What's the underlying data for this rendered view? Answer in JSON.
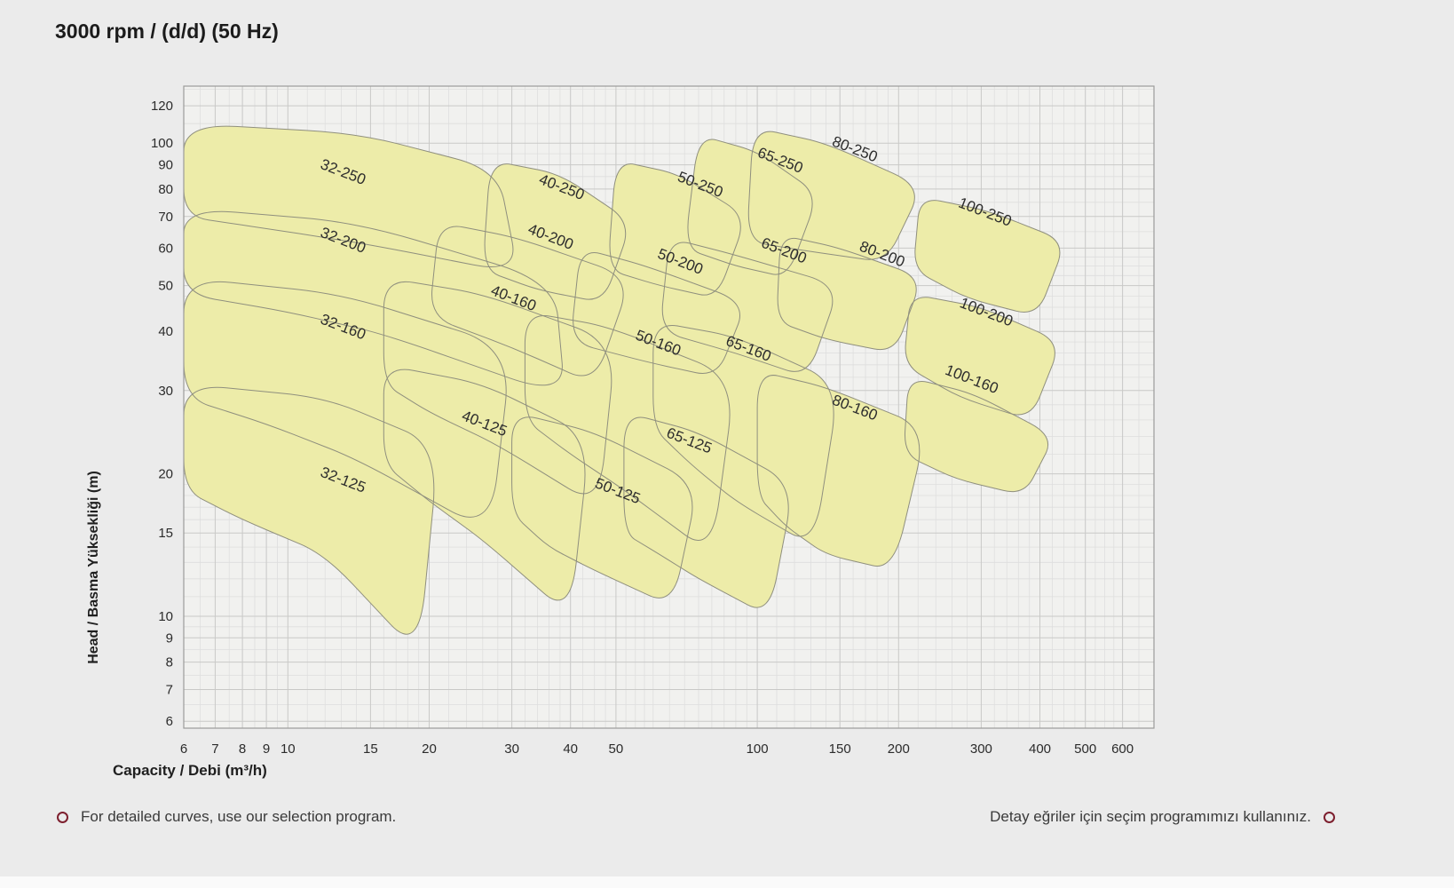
{
  "page": {
    "title": "3000 rpm / (d/d) (50 Hz)",
    "background": "#ebebeb"
  },
  "footer": {
    "left_note": "For detailed curves, use our selection program.",
    "right_note": "Detay eğriler için seçim programımızı kullanınız.",
    "marker_icon": "circle-outline-icon",
    "marker_color": "#7d1f2e"
  },
  "chart_data": {
    "type": "area",
    "subtype": "pump-selection-mosaic",
    "title": "3000 rpm / (d/d) (50 Hz)",
    "xlabel": "Capacity / Debi (m³/h)",
    "ylabel": "Head / Basma Yüksekliği (m)",
    "x_scale": "log",
    "y_scale": "log",
    "xlim": [
      6,
      700
    ],
    "ylim": [
      5.8,
      132
    ],
    "x_ticks": [
      6,
      7,
      8,
      9,
      10,
      15,
      20,
      30,
      40,
      50,
      100,
      150,
      200,
      300,
      400,
      500,
      600
    ],
    "y_ticks": [
      6,
      7,
      8,
      9,
      10,
      15,
      20,
      30,
      40,
      50,
      60,
      70,
      80,
      90,
      100,
      120
    ],
    "grid": true,
    "legend": "none",
    "label_angle_deg": 21,
    "colors": {
      "plot_bg": "#f1f1ef",
      "grid_minor": "#dedede",
      "grid_major": "#c9c9c7",
      "plot_border": "#9b9b99",
      "region_fill": "#edeca9",
      "region_stroke": "#8f8f7e",
      "label_color": "#2d2d2d",
      "tick_color": "#2b2b2b"
    },
    "regions": [
      {
        "label": "32-125",
        "label_at": [
          13,
          19
        ],
        "points": [
          [
            6,
            18.5
          ],
          [
            6,
            31
          ],
          [
            12,
            29
          ],
          [
            21,
            23
          ],
          [
            19,
            8.3
          ],
          [
            12,
            13.5
          ],
          [
            8,
            16
          ]
        ]
      },
      {
        "label": "32-160",
        "label_at": [
          13,
          40
        ],
        "points": [
          [
            6,
            29
          ],
          [
            6,
            52
          ],
          [
            13,
            48
          ],
          [
            30,
            37
          ],
          [
            27,
            15
          ],
          [
            14,
            21.5
          ],
          [
            9,
            25.5
          ]
        ]
      },
      {
        "label": "32-200",
        "label_at": [
          13,
          61
        ],
        "points": [
          [
            6,
            48
          ],
          [
            6,
            73
          ],
          [
            14,
            68
          ],
          [
            37,
            51
          ],
          [
            39,
            29
          ],
          [
            16,
            39.5
          ],
          [
            10,
            44
          ]
        ]
      },
      {
        "label": "32-250",
        "label_at": [
          13,
          85
        ],
        "points": [
          [
            6,
            70
          ],
          [
            6,
            110
          ],
          [
            14,
            105
          ],
          [
            28,
            88
          ],
          [
            31,
            53
          ],
          [
            15,
            61
          ],
          [
            9,
            66
          ]
        ]
      },
      {
        "label": "40-125",
        "label_at": [
          26,
          25
        ],
        "points": [
          [
            16,
            21
          ],
          [
            16,
            34
          ],
          [
            26,
            31
          ],
          [
            44,
            24
          ],
          [
            40,
            10
          ],
          [
            26,
            14.5
          ],
          [
            20,
            17.5
          ]
        ]
      },
      {
        "label": "40-160",
        "label_at": [
          30,
          46
        ],
        "points": [
          [
            16,
            31
          ],
          [
            16,
            52
          ],
          [
            26,
            48
          ],
          [
            50,
            38
          ],
          [
            46,
            17
          ],
          [
            28,
            23
          ],
          [
            20,
            27
          ]
        ]
      },
      {
        "label": "40-200",
        "label_at": [
          36,
          62
        ],
        "points": [
          [
            20,
            43
          ],
          [
            21,
            68
          ],
          [
            31,
            63
          ],
          [
            54,
            52
          ],
          [
            45,
            31
          ],
          [
            30,
            37
          ]
        ]
      },
      {
        "label": "40-250",
        "label_at": [
          38,
          79
        ],
        "points": [
          [
            26,
            54
          ],
          [
            27,
            92
          ],
          [
            38,
            86
          ],
          [
            54,
            68
          ],
          [
            47,
            46
          ],
          [
            34,
            49
          ]
        ]
      },
      {
        "label": "50-125",
        "label_at": [
          50,
          18
        ],
        "points": [
          [
            30,
            16.5
          ],
          [
            30,
            27
          ],
          [
            45,
            24.5
          ],
          [
            75,
            19
          ],
          [
            66,
            10.5
          ],
          [
            45,
            12.5
          ],
          [
            36,
            14
          ]
        ]
      },
      {
        "label": "50-160",
        "label_at": [
          61,
          37
        ],
        "points": [
          [
            32,
            26
          ],
          [
            32,
            44
          ],
          [
            48,
            41
          ],
          [
            90,
            32
          ],
          [
            80,
            13.5
          ],
          [
            52,
            18.5
          ],
          [
            40,
            22
          ]
        ]
      },
      {
        "label": "50-200",
        "label_at": [
          68,
          55
        ],
        "points": [
          [
            40,
            38
          ],
          [
            42,
            60
          ],
          [
            58,
            55
          ],
          [
            95,
            46
          ],
          [
            82,
            32
          ],
          [
            58,
            34.5
          ]
        ]
      },
      {
        "label": "50-250",
        "label_at": [
          75,
          80
        ],
        "points": [
          [
            48,
            54
          ],
          [
            50,
            92
          ],
          [
            68,
            86
          ],
          [
            95,
            70
          ],
          [
            82,
            47
          ],
          [
            62,
            50
          ]
        ]
      },
      {
        "label": "65-125",
        "label_at": [
          71,
          23
        ],
        "points": [
          [
            52,
            15
          ],
          [
            52,
            27
          ],
          [
            75,
            24.5
          ],
          [
            120,
            19
          ],
          [
            106,
            10
          ],
          [
            75,
            12
          ],
          [
            62,
            13.5
          ]
        ]
      },
      {
        "label": "65-160",
        "label_at": [
          95,
          36
        ],
        "points": [
          [
            60,
            25
          ],
          [
            60,
            42
          ],
          [
            90,
            39
          ],
          [
            150,
            31
          ],
          [
            132,
            14
          ],
          [
            90,
            17.5
          ],
          [
            72,
            21
          ]
        ]
      },
      {
        "label": "65-200",
        "label_at": [
          113,
          58
        ],
        "points": [
          [
            62,
            40
          ],
          [
            65,
            63
          ],
          [
            90,
            58
          ],
          [
            150,
            50
          ],
          [
            128,
            32
          ],
          [
            90,
            36
          ]
        ]
      },
      {
        "label": "65-250",
        "label_at": [
          111,
          90
        ],
        "points": [
          [
            70,
            60
          ],
          [
            75,
            104
          ],
          [
            100,
            96
          ],
          [
            135,
            78
          ],
          [
            116,
            52
          ],
          [
            90,
            55
          ]
        ]
      },
      {
        "label": "80-160",
        "label_at": [
          160,
          27
        ],
        "points": [
          [
            100,
            18
          ],
          [
            100,
            33
          ],
          [
            140,
            30.5
          ],
          [
            230,
            25
          ],
          [
            195,
            12.5
          ],
          [
            140,
            13.5
          ],
          [
            115,
            15.5
          ]
        ]
      },
      {
        "label": "80-200",
        "label_at": [
          183,
          57
        ],
        "points": [
          [
            110,
            42
          ],
          [
            112,
            64
          ],
          [
            150,
            60
          ],
          [
            225,
            52
          ],
          [
            196,
            36
          ],
          [
            140,
            38.5
          ]
        ]
      },
      {
        "label": "80-250",
        "label_at": [
          160,
          95
        ],
        "points": [
          [
            95,
            62
          ],
          [
            98,
            108
          ],
          [
            140,
            100
          ],
          [
            225,
            81
          ],
          [
            188,
            56
          ],
          [
            130,
            59
          ]
        ]
      },
      {
        "label": "100-160",
        "label_at": [
          284,
          31
        ],
        "points": [
          [
            205,
            22
          ],
          [
            210,
            32
          ],
          [
            290,
            29.5
          ],
          [
            430,
            24
          ],
          [
            370,
            18
          ],
          [
            265,
            19.5
          ]
        ]
      },
      {
        "label": "100-200",
        "label_at": [
          305,
          43
        ],
        "points": [
          [
            205,
            34
          ],
          [
            212,
            48
          ],
          [
            300,
            45
          ],
          [
            445,
            38
          ],
          [
            382,
            26
          ],
          [
            270,
            29
          ]
        ]
      },
      {
        "label": "100-250",
        "label_at": [
          303,
          70
        ],
        "points": [
          [
            215,
            54
          ],
          [
            222,
            77
          ],
          [
            310,
            72
          ],
          [
            455,
            62
          ],
          [
            395,
            43
          ],
          [
            280,
            47
          ]
        ]
      }
    ]
  }
}
